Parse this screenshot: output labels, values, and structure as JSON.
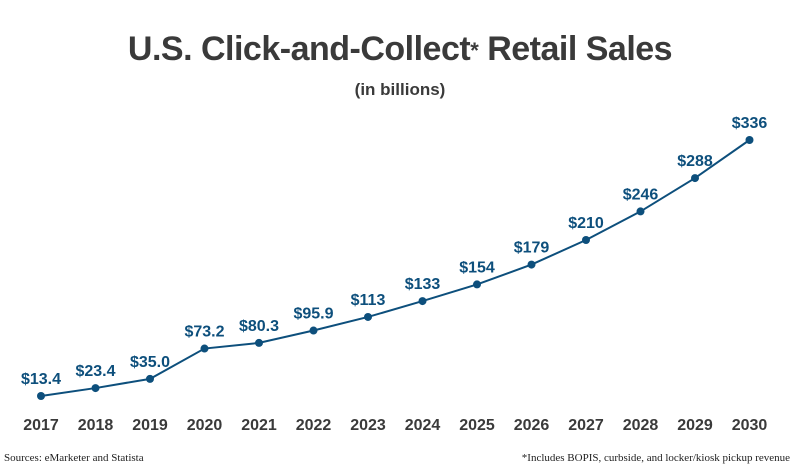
{
  "title_main": "U.S. Click-and-Collect",
  "title_star": "*",
  "title_end": " Retail Sales",
  "subtitle": "(in billions)",
  "source": "Sources: eMarketer and Statista",
  "footnote": "*Includes BOPIS, curbside, and locker/kiosk pickup revenue",
  "colors": {
    "line": "#0d4f7c",
    "label": "#0d4f7c",
    "axis_text": "#3a3a3a"
  },
  "chart_data": {
    "type": "line",
    "x": [
      "2017",
      "2018",
      "2019",
      "2020",
      "2021",
      "2022",
      "2023",
      "2024",
      "2025",
      "2026",
      "2027",
      "2028",
      "2029",
      "2030"
    ],
    "values": [
      13.4,
      23.4,
      35.0,
      73.2,
      80.3,
      95.9,
      113,
      133,
      154,
      179,
      210,
      246,
      288,
      336
    ],
    "labels": [
      "$13.4",
      "$23.4",
      "$35.0",
      "$73.2",
      "$80.3",
      "$95.9",
      "$113",
      "$133",
      "$154",
      "$179",
      "$210",
      "$246",
      "$288",
      "$336"
    ],
    "grid": false,
    "legend": "none"
  }
}
